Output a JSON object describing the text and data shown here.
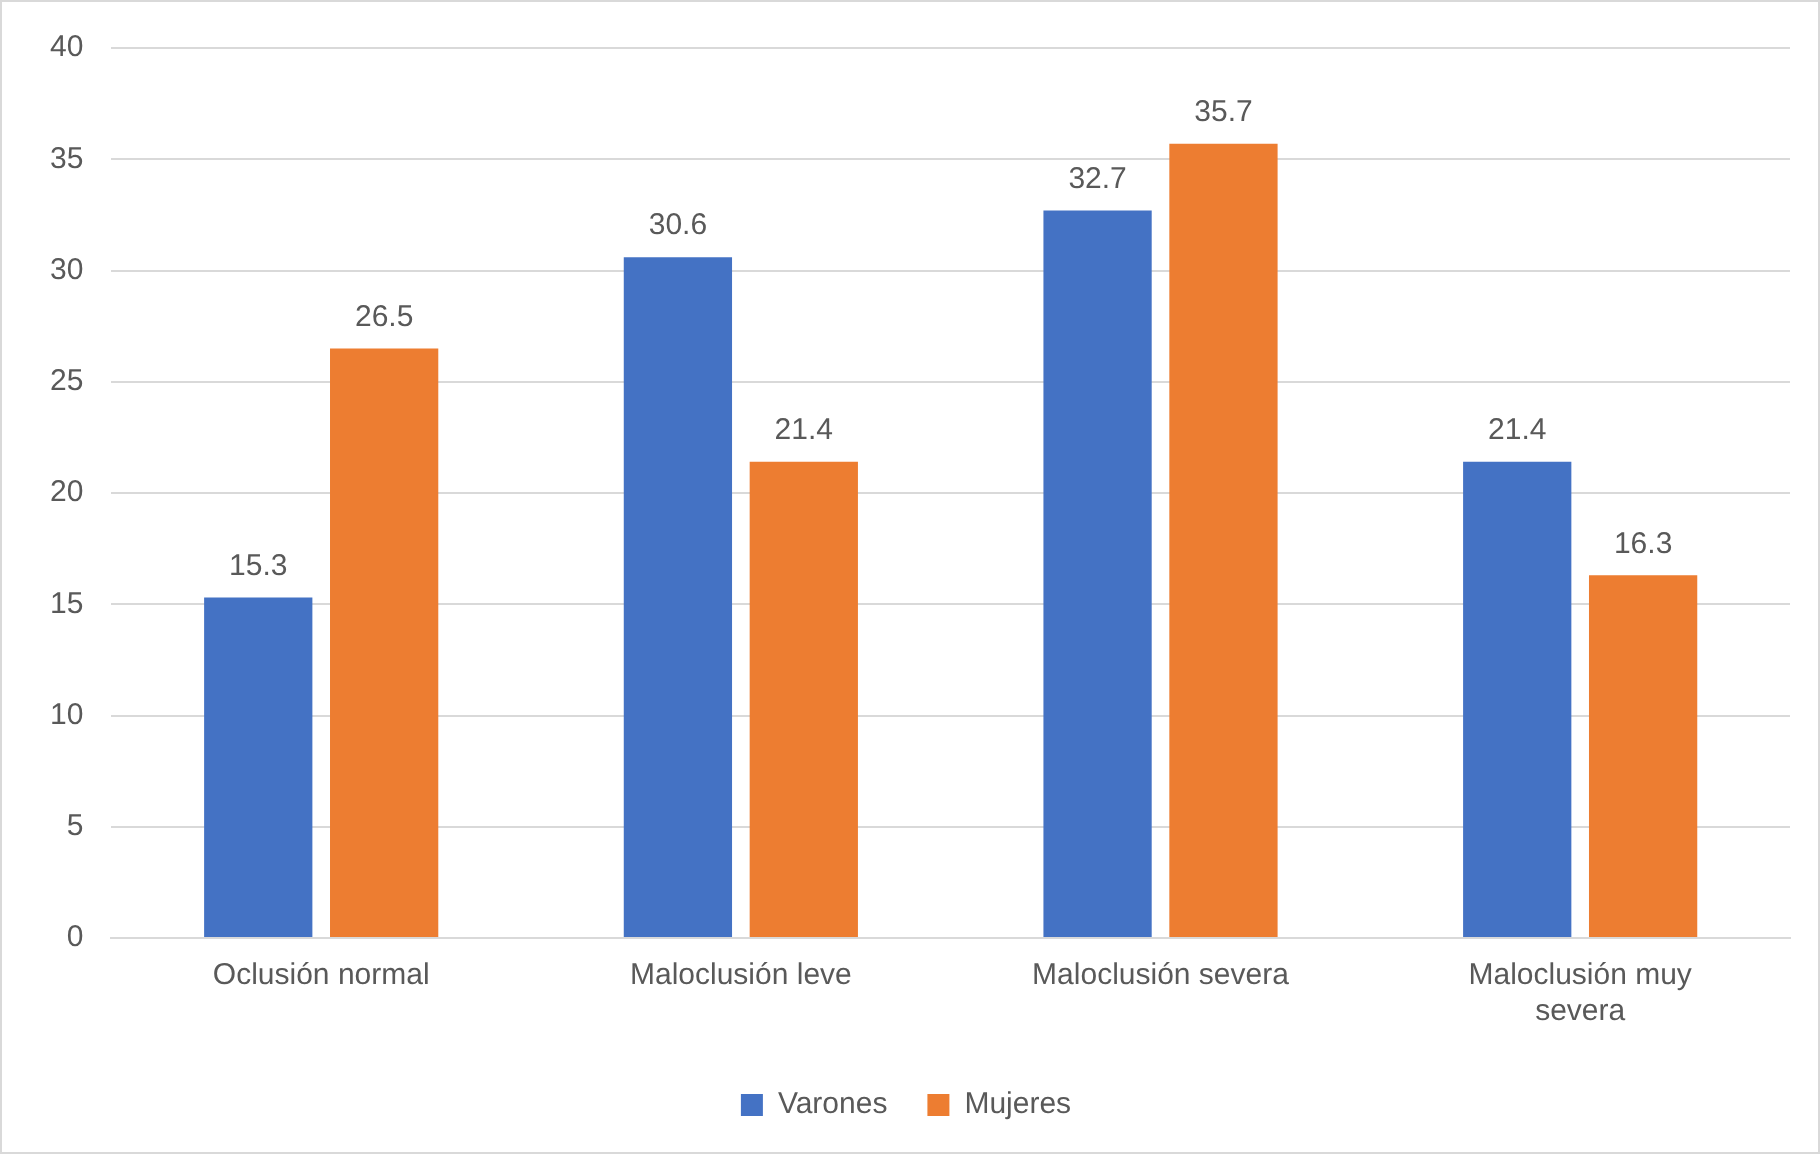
{
  "chart_data": {
    "type": "bar",
    "categories": [
      "Oclusión normal",
      "Maloclusión leve",
      "Maloclusión severa",
      "Maloclusión muy severa"
    ],
    "series": [
      {
        "name": "Varones",
        "color": "#4472c4",
        "values": [
          15.3,
          30.6,
          32.7,
          21.4
        ]
      },
      {
        "name": "Mujeres",
        "color": "#ed7d31",
        "values": [
          26.5,
          21.4,
          35.7,
          16.3
        ]
      }
    ],
    "ylim": [
      0,
      40
    ],
    "yticks": [
      0,
      5,
      10,
      15,
      20,
      25,
      30,
      35,
      40
    ],
    "grid": "y",
    "legend": "bottom",
    "data_labels": true
  }
}
